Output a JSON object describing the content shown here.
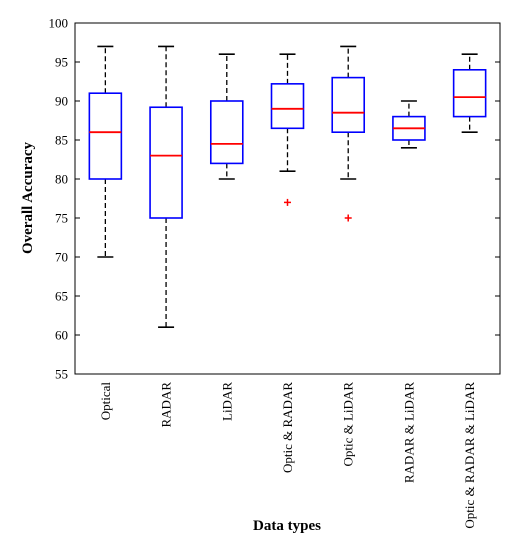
{
  "chart_data": {
    "type": "boxplot",
    "xlabel": "Data types",
    "ylabel": "Overall Accuracy",
    "ylim": [
      55,
      100
    ],
    "yticks": [
      55,
      60,
      65,
      70,
      75,
      80,
      85,
      90,
      95,
      100
    ],
    "grid": false,
    "categories": [
      "Optical",
      "RADAR",
      "LiDAR",
      "Optic & RADAR",
      "Optic & LiDAR",
      "RADAR & LiDAR",
      "Optic & RADAR & LiDAR"
    ],
    "boxes": [
      {
        "whisker_low": 70,
        "q1": 80,
        "median": 86,
        "q3": 91,
        "whisker_high": 97,
        "outliers": []
      },
      {
        "whisker_low": 61,
        "q1": 75,
        "median": 83,
        "q3": 89.2,
        "whisker_high": 97,
        "outliers": []
      },
      {
        "whisker_low": 80,
        "q1": 82,
        "median": 84.5,
        "q3": 90,
        "whisker_high": 96,
        "outliers": []
      },
      {
        "whisker_low": 81,
        "q1": 86.5,
        "median": 89,
        "q3": 92.2,
        "whisker_high": 96,
        "outliers": [
          77
        ]
      },
      {
        "whisker_low": 80,
        "q1": 86,
        "median": 88.5,
        "q3": 93,
        "whisker_high": 97,
        "outliers": [
          75
        ]
      },
      {
        "whisker_low": 84,
        "q1": 85,
        "median": 86.5,
        "q3": 88,
        "whisker_high": 90,
        "outliers": []
      },
      {
        "whisker_low": 86,
        "q1": 88,
        "median": 90.5,
        "q3": 94,
        "whisker_high": 96,
        "outliers": []
      }
    ],
    "colors": {
      "box": "#0000ff",
      "median": "#ff0000",
      "whisker": "#000000",
      "outlier": "#ff0000"
    }
  }
}
